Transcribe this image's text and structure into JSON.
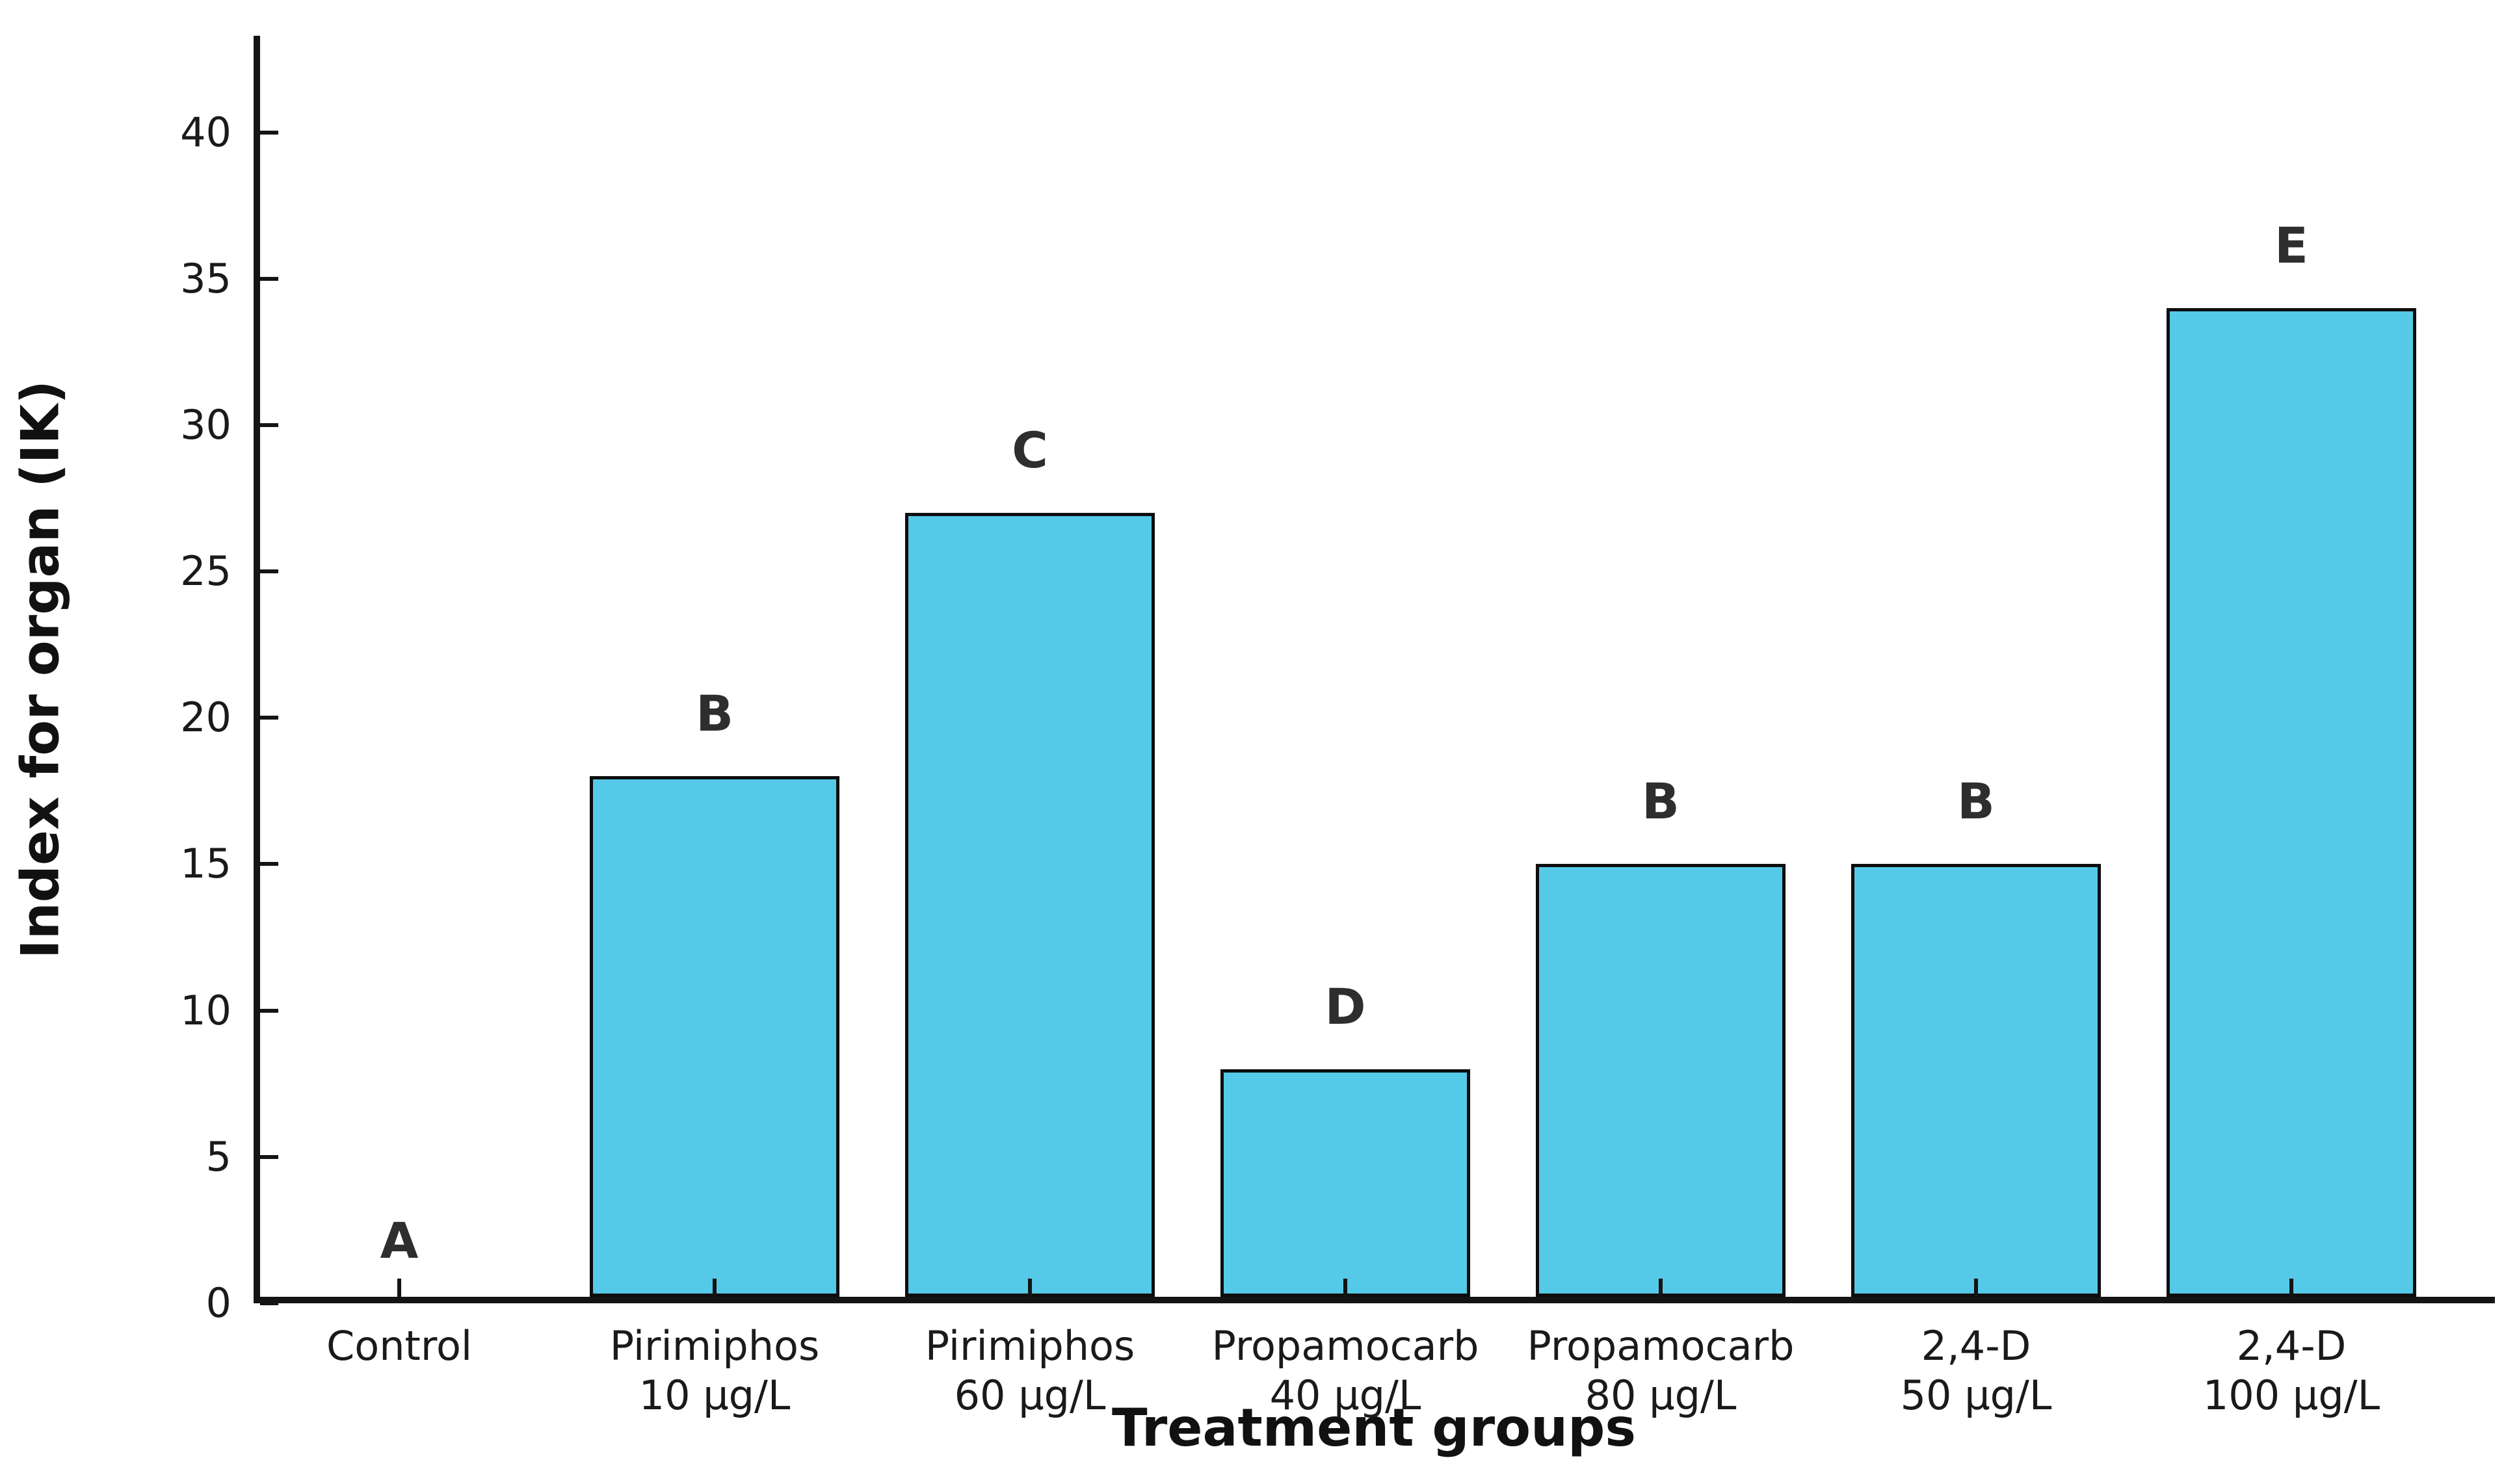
{
  "figure": {
    "background": "#ffffff"
  },
  "chart_data": {
    "type": "bar",
    "title": "",
    "xlabel": "Treatment groups",
    "ylabel": "Index for organ (IK)",
    "categories": [
      "Control",
      "Pirimiphos\n10 µg/L",
      "Pirimiphos\n60 µg/L",
      "Propamocarb\n40 µg/L",
      "Propamocarb\n80 µg/L",
      "2,4-D\n50 µg/L",
      "2,4-D\n100 µg/L"
    ],
    "values": [
      0,
      18,
      27,
      8,
      15,
      15,
      34
    ],
    "bar_labels": [
      "A",
      "B",
      "C",
      "D",
      "B",
      "B",
      "E"
    ],
    "yticks": [
      0,
      5,
      10,
      15,
      20,
      25,
      30,
      35,
      40
    ],
    "ylim": [
      0,
      43.3
    ],
    "grid": false,
    "legend": null,
    "tick_direction": "in",
    "bar_color": "#55C9E8",
    "bar_edge_color": "#0d0d0d",
    "letter_color": "#2e2e2e"
  }
}
